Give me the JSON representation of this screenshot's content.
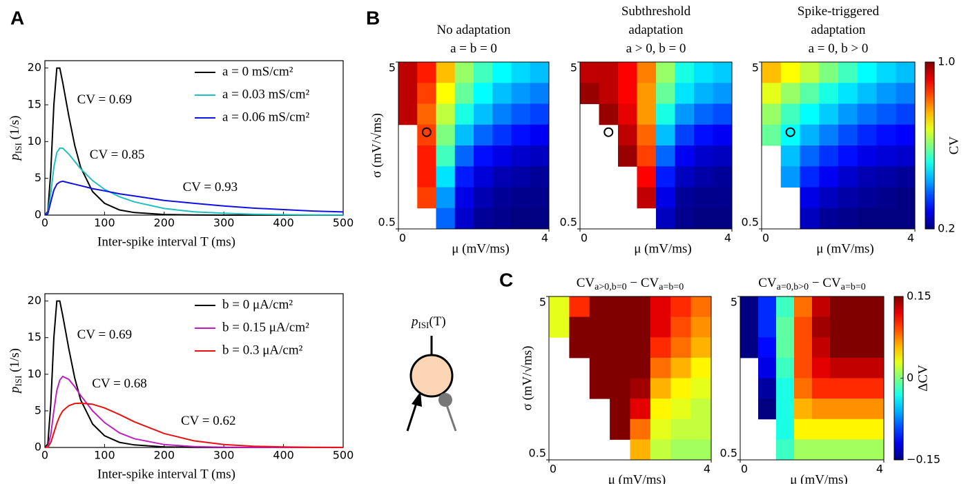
{
  "panel_labels": [
    "A",
    "B",
    "C"
  ],
  "diagram": {
    "label_parts": [
      "p",
      "ISI",
      "(T)"
    ]
  },
  "chart_data": [
    {
      "type": "line",
      "xlabel": "Inter-spike interval  T (ms)",
      "ylabel_parts": [
        "p",
        "ISI",
        " (1/s)"
      ],
      "xlim": [
        0,
        500
      ],
      "ylim": [
        0,
        21
      ],
      "xticks": [
        0,
        100,
        200,
        300,
        400,
        500
      ],
      "yticks": [
        0,
        5,
        10,
        15,
        20
      ],
      "legend": "upper right",
      "x": [
        0,
        5,
        10,
        15,
        20,
        25,
        30,
        40,
        50,
        60,
        80,
        100,
        125,
        150,
        200,
        250,
        300,
        350,
        400,
        450,
        500
      ],
      "series": [
        {
          "name": "a = 0 mS/cm²",
          "color": "#000000",
          "values": [
            0,
            0.5,
            6,
            15,
            20,
            20,
            18,
            13.5,
            9.5,
            6.5,
            3.2,
            1.6,
            0.7,
            0.35,
            0.08,
            0.02,
            0,
            0,
            0,
            0,
            0
          ]
        },
        {
          "name": "a = 0.03 mS/cm²",
          "color": "#1fbfbf",
          "values": [
            0,
            0.3,
            3,
            6.5,
            8.5,
            9.1,
            9.1,
            8.3,
            7.3,
            6.3,
            4.7,
            3.5,
            2.5,
            1.8,
            0.9,
            0.45,
            0.25,
            0.12,
            0.06,
            0.03,
            0.02
          ]
        },
        {
          "name": "a = 0.06 mS/cm²",
          "color": "#1010e0",
          "values": [
            0,
            0.2,
            1.8,
            3.4,
            4.2,
            4.5,
            4.6,
            4.4,
            4.2,
            4.0,
            3.6,
            3.3,
            2.9,
            2.6,
            2.0,
            1.6,
            1.25,
            0.95,
            0.75,
            0.55,
            0.43
          ]
        }
      ],
      "annotations": [
        {
          "text": "CV = 0.69",
          "color": "#000000"
        },
        {
          "text": "CV = 0.85",
          "color": "#1fbfbf"
        },
        {
          "text": "CV = 0.93",
          "color": "#1010e0"
        }
      ]
    },
    {
      "type": "line",
      "xlabel": "Inter-spike interval  T (ms)",
      "ylabel_parts": [
        "p",
        "ISI",
        " (1/s)"
      ],
      "xlim": [
        0,
        500
      ],
      "ylim": [
        0,
        21
      ],
      "xticks": [
        0,
        100,
        200,
        300,
        400,
        500
      ],
      "yticks": [
        0,
        5,
        10,
        15,
        20
      ],
      "legend": "upper right",
      "x": [
        0,
        5,
        10,
        15,
        20,
        25,
        30,
        40,
        50,
        60,
        80,
        100,
        125,
        150,
        200,
        250,
        300,
        350,
        400,
        450,
        500
      ],
      "series": [
        {
          "name": "b = 0 μA/cm²",
          "color": "#000000",
          "values": [
            0,
            0.5,
            6,
            15,
            20,
            20,
            18,
            13.5,
            9.5,
            6.5,
            3.2,
            1.6,
            0.7,
            0.35,
            0.08,
            0.02,
            0,
            0,
            0,
            0,
            0
          ]
        },
        {
          "name": "b = 0.15 μA/cm²",
          "color": "#bf1fbf",
          "values": [
            0,
            0.1,
            1.8,
            5,
            7.8,
            9.2,
            9.7,
            9.3,
            8.3,
            7.1,
            5,
            3.4,
            2,
            1.2,
            0.4,
            0.12,
            0.04,
            0.01,
            0,
            0,
            0
          ]
        },
        {
          "name": "b = 0.3 μA/cm²",
          "color": "#e81010",
          "values": [
            0,
            0.05,
            0.7,
            2,
            3.3,
            4.3,
            5,
            5.7,
            6,
            6.05,
            5.9,
            5.4,
            4.5,
            3.5,
            1.9,
            0.9,
            0.4,
            0.17,
            0.07,
            0.03,
            0.01
          ]
        }
      ],
      "annotations": [
        {
          "text": "CV = 0.69",
          "color": "#000000"
        },
        {
          "text": "CV = 0.68",
          "color": "#bf1fbf"
        },
        {
          "text": "CV = 0.62",
          "color": "#e81010"
        }
      ]
    },
    {
      "type": "heatmap",
      "title_lines": [
        [
          "No adaptation"
        ],
        [
          "a = b = 0"
        ]
      ],
      "xlabel": "μ (mV/ms)",
      "ylabel": "σ (mV/√ms)",
      "xlim": [
        0,
        4
      ],
      "ylim": [
        0.5,
        5
      ],
      "yscale": "log",
      "xticks": [
        0,
        4
      ],
      "yticks": [
        5,
        0.5
      ],
      "clim": [
        0.2,
        1.0
      ],
      "colormap": "jet",
      "marker": {
        "x": 0.75,
        "y": 1.9
      },
      "values": [
        [
          0.95,
          0.88,
          0.75,
          0.62,
          0.55,
          0.5,
          0.47,
          0.45
        ],
        [
          0.95,
          0.85,
          0.7,
          0.58,
          0.5,
          0.45,
          0.42,
          0.4
        ],
        [
          0.95,
          0.82,
          0.65,
          0.52,
          0.45,
          0.4,
          0.37,
          0.35
        ],
        [
          null,
          0.85,
          0.6,
          0.45,
          0.38,
          0.34,
          0.31,
          0.29
        ],
        [
          null,
          0.88,
          0.55,
          0.38,
          0.31,
          0.28,
          0.26,
          0.25
        ],
        [
          null,
          0.88,
          0.48,
          0.32,
          0.27,
          0.24,
          0.23,
          0.22
        ],
        [
          null,
          0.85,
          0.42,
          0.28,
          0.24,
          0.22,
          0.21,
          0.21
        ],
        [
          null,
          null,
          0.38,
          0.26,
          0.22,
          0.21,
          0.2,
          0.2
        ]
      ]
    },
    {
      "type": "heatmap",
      "title_lines": [
        [
          "Subthreshold"
        ],
        [
          "adaptation"
        ],
        [
          "a > 0, b = 0"
        ]
      ],
      "xlabel": "μ (mV/ms)",
      "xlim": [
        0,
        4
      ],
      "ylim": [
        0.5,
        5
      ],
      "yscale": "log",
      "xticks": [
        0,
        4
      ],
      "yticks": [
        5,
        0.5
      ],
      "clim": [
        0.2,
        1.0
      ],
      "colormap": "jet",
      "marker": {
        "x": 0.75,
        "y": 1.9
      },
      "values": [
        [
          0.95,
          0.95,
          0.9,
          0.8,
          0.62,
          0.52,
          0.48,
          0.46
        ],
        [
          0.98,
          0.95,
          0.9,
          0.78,
          0.58,
          0.48,
          0.44,
          0.42
        ],
        [
          null,
          0.98,
          0.92,
          0.78,
          0.52,
          0.42,
          0.38,
          0.36
        ],
        [
          null,
          null,
          0.95,
          0.82,
          0.45,
          0.35,
          0.31,
          0.29
        ],
        [
          null,
          null,
          0.98,
          0.85,
          0.38,
          0.29,
          0.26,
          0.25
        ],
        [
          null,
          null,
          null,
          0.9,
          0.32,
          0.25,
          0.23,
          0.22
        ],
        [
          null,
          null,
          null,
          0.95,
          0.28,
          0.22,
          0.21,
          0.21
        ],
        [
          null,
          null,
          null,
          null,
          0.25,
          0.21,
          0.2,
          0.2
        ]
      ]
    },
    {
      "type": "heatmap",
      "title_lines": [
        [
          "Spike-triggered"
        ],
        [
          "adaptation"
        ],
        [
          "a = 0, b > 0"
        ]
      ],
      "xlabel": "μ (mV/ms)",
      "xlim": [
        0,
        4
      ],
      "ylim": [
        0.5,
        5
      ],
      "yscale": "log",
      "xticks": [
        0,
        4
      ],
      "yticks": [
        5,
        0.5
      ],
      "clim": [
        0.2,
        1.0
      ],
      "colormap": "jet",
      "marker": {
        "x": 0.75,
        "y": 1.9
      },
      "values": [
        [
          0.75,
          0.7,
          0.65,
          0.6,
          0.55,
          0.5,
          0.47,
          0.45
        ],
        [
          0.68,
          0.62,
          0.57,
          0.52,
          0.48,
          0.45,
          0.42,
          0.4
        ],
        [
          0.62,
          0.55,
          0.5,
          0.46,
          0.42,
          0.39,
          0.37,
          0.35
        ],
        [
          0.58,
          0.5,
          0.44,
          0.4,
          0.36,
          0.33,
          0.31,
          0.3
        ],
        [
          null,
          0.45,
          0.38,
          0.34,
          0.31,
          0.28,
          0.27,
          0.26
        ],
        [
          null,
          0.42,
          0.33,
          0.29,
          0.26,
          0.24,
          0.23,
          0.22
        ],
        [
          null,
          null,
          0.28,
          0.25,
          0.23,
          0.22,
          0.21,
          0.2
        ],
        [
          null,
          null,
          0.25,
          0.22,
          0.21,
          0.2,
          0.2,
          0.2
        ]
      ]
    },
    {
      "type": "colorbar",
      "label": "CV",
      "clim": [
        0.2,
        1.0
      ],
      "colormap": "jet",
      "ticks": [
        {
          "value": 1.0,
          "label": "1.0"
        },
        0.2
      ]
    },
    {
      "type": "heatmap",
      "title_lines": [
        [
          "CV",
          {
            "sub": "a>0,b=0"
          },
          " − CV",
          {
            "sub": "a=b=0"
          }
        ]
      ],
      "xlabel": "μ (mV/ms)",
      "ylabel": "σ (mV/√ms)",
      "xlim": [
        0,
        4
      ],
      "ylim": [
        0.5,
        5
      ],
      "yscale": "log",
      "xticks": [
        0,
        4
      ],
      "yticks": [
        5,
        0.5
      ],
      "clim": [
        -0.15,
        0.15
      ],
      "colormap": "jet",
      "values": [
        [
          0.03,
          0.1,
          0.15,
          0.15,
          0.15,
          0.12,
          0.1,
          0.08
        ],
        [
          0.03,
          0.15,
          0.15,
          0.15,
          0.15,
          0.12,
          0.09,
          0.07
        ],
        [
          null,
          0.15,
          0.15,
          0.15,
          0.15,
          0.1,
          0.08,
          0.06
        ],
        [
          null,
          null,
          0.15,
          0.15,
          0.15,
          0.08,
          0.06,
          0.04
        ],
        [
          null,
          null,
          0.15,
          0.15,
          0.14,
          0.06,
          0.04,
          0.03
        ],
        [
          null,
          null,
          null,
          0.15,
          0.12,
          0.04,
          0.03,
          0.02
        ],
        [
          null,
          null,
          null,
          0.15,
          0.08,
          0.03,
          0.02,
          0.02
        ],
        [
          null,
          null,
          null,
          null,
          0.06,
          0.02,
          0.01,
          0.01
        ]
      ]
    },
    {
      "type": "heatmap",
      "title_lines": [
        [
          "CV",
          {
            "sub": "a=0,b>0"
          },
          " − CV",
          {
            "sub": "a=b=0"
          }
        ]
      ],
      "xlabel": "μ (mV/ms)",
      "xlim": [
        0,
        4
      ],
      "ylim": [
        0.5,
        5
      ],
      "yscale": "log",
      "xticks": [
        0,
        4
      ],
      "yticks": [
        5,
        0.5
      ],
      "clim": [
        -0.15,
        0.15
      ],
      "colormap": "jet",
      "values": [
        [
          -0.15,
          -0.1,
          -0.02,
          0.08,
          0.13,
          0.15,
          0.15,
          0.15
        ],
        [
          -0.15,
          -0.1,
          -0.01,
          0.09,
          0.14,
          0.15,
          0.15,
          0.15
        ],
        [
          -0.15,
          -0.11,
          -0.01,
          0.09,
          0.13,
          0.15,
          0.15,
          0.15
        ],
        [
          null,
          -0.12,
          -0.02,
          0.09,
          0.12,
          0.13,
          0.13,
          0.13
        ],
        [
          null,
          -0.14,
          -0.03,
          0.08,
          0.1,
          0.1,
          0.1,
          0.1
        ],
        [
          null,
          -0.15,
          -0.03,
          0.06,
          0.07,
          0.07,
          0.07,
          0.07
        ],
        [
          null,
          null,
          -0.03,
          0.04,
          0.04,
          0.04,
          0.04,
          0.04
        ],
        [
          null,
          null,
          -0.02,
          0.01,
          0.01,
          0.01,
          0.01,
          0.01
        ]
      ]
    },
    {
      "type": "colorbar",
      "label": "ΔCV",
      "clim": [
        -0.15,
        0.15
      ],
      "colormap": "jet",
      "ticks": [
        0.15,
        0,
        {
          "value": -0.15,
          "label": "−0.15"
        }
      ]
    }
  ]
}
